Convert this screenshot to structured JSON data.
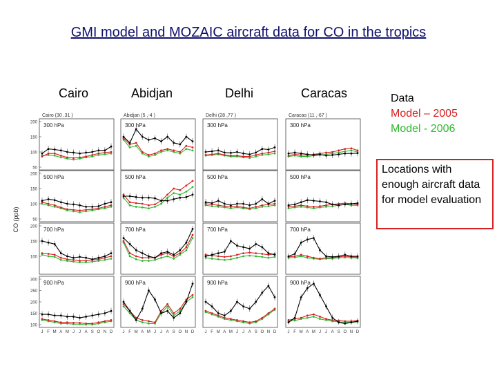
{
  "slide": {
    "title": "GMI model and MOZAIC aircraft data for CO in the tropics",
    "cities": [
      "Cairo",
      "Abidjan",
      "Delhi",
      "Caracas"
    ],
    "legend": [
      {
        "label": "Data",
        "color": "#000000"
      },
      {
        "label": "Model – 2005",
        "color": "#d62020"
      },
      {
        "label": "Model - 2006",
        "color": "#2eb82e"
      }
    ],
    "note": "Locations with enough aircraft data for model evaluation"
  },
  "chart_data": {
    "type": "line",
    "ylabel": "CO (ppb)",
    "months": [
      "J",
      "F",
      "M",
      "A",
      "M",
      "J",
      "J",
      "A",
      "S",
      "O",
      "N",
      "D"
    ],
    "columns": [
      "Cairo (30 ,31 )",
      "Abidjan (5 ,-4 )",
      "Delhi (28 ,77 )",
      "Caracas (11 ,-67 )"
    ],
    "series_names": [
      "Data",
      "Model – 2005",
      "Model - 2006"
    ],
    "series_colors": [
      "#000000",
      "#d62020",
      "#2eb82e"
    ],
    "rows": [
      {
        "level": "300 hPa",
        "ylim": [
          50,
          200
        ],
        "yticks": [
          50,
          100,
          150,
          200
        ],
        "panels": [
          {
            "data": [
              95,
              110,
              108,
              105,
              100,
              98,
              95,
              98,
              100,
              105,
              105,
              118
            ],
            "m2005": [
              85,
              95,
              95,
              88,
              82,
              80,
              82,
              85,
              90,
              95,
              98,
              100
            ],
            "m2006": [
              88,
              90,
              88,
              82,
              78,
              75,
              78,
              82,
              85,
              90,
              92,
              95
            ]
          },
          {
            "data": [
              150,
              130,
              175,
              150,
              140,
              145,
              135,
              150,
              130,
              125,
              150,
              135
            ],
            "m2005": [
              145,
              125,
              130,
              100,
              90,
              95,
              105,
              110,
              105,
              100,
              120,
              115
            ],
            "m2006": [
              140,
              115,
              120,
              95,
              85,
              90,
              100,
              105,
              100,
              95,
              110,
              105
            ]
          },
          {
            "data": [
              100,
              102,
              105,
              98,
              97,
              100,
              95,
              92,
              98,
              110,
              108,
              115
            ],
            "m2005": [
              90,
              92,
              95,
              90,
              88,
              88,
              85,
              85,
              90,
              95,
              98,
              102
            ],
            "m2006": [
              88,
              90,
              92,
              88,
              85,
              85,
              82,
              80,
              85,
              90,
              92,
              95
            ]
          },
          {
            "data": [
              95,
              98,
              95,
              92,
              90,
              92,
              88,
              90,
              92,
              95,
              95,
              96
            ],
            "m2005": [
              88,
              92,
              90,
              90,
              92,
              95,
              98,
              100,
              105,
              110,
              112,
              105
            ],
            "m2006": [
              85,
              88,
              85,
              85,
              88,
              90,
              92,
              95,
              98,
              102,
              105,
              100
            ]
          }
        ]
      },
      {
        "level": "500 hPa",
        "ylim": [
          50,
          200
        ],
        "yticks": [
          50,
          100,
          150,
          200
        ],
        "panels": [
          {
            "data": [
              110,
              115,
              112,
              105,
              100,
              98,
              95,
              90,
              90,
              92,
              100,
              105
            ],
            "m2005": [
              105,
              100,
              95,
              88,
              82,
              80,
              78,
              80,
              82,
              85,
              90,
              95
            ],
            "m2006": [
              100,
              95,
              90,
              85,
              78,
              75,
              72,
              75,
              78,
              82,
              85,
              90
            ]
          },
          {
            "data": [
              125,
              125,
              122,
              120,
              120,
              118,
              110,
              110,
              115,
              120,
              122,
              130
            ],
            "m2005": [
              130,
              105,
              102,
              100,
              95,
              98,
              110,
              130,
              150,
              145,
              160,
              175
            ],
            "m2006": [
              120,
              95,
              90,
              88,
              85,
              90,
              100,
              120,
              135,
              130,
              140,
              155
            ]
          },
          {
            "data": [
              105,
              102,
              110,
              100,
              95,
              100,
              100,
              95,
              100,
              115,
              100,
              110
            ],
            "m2005": [
              100,
              98,
              95,
              92,
              90,
              92,
              88,
              85,
              90,
              95,
              98,
              100
            ],
            "m2006": [
              95,
              92,
              90,
              88,
              85,
              88,
              85,
              82,
              85,
              90,
              92,
              95
            ]
          },
          {
            "data": [
              95,
              98,
              105,
              112,
              110,
              108,
              105,
              98,
              95,
              98,
              100,
              102
            ],
            "m2005": [
              90,
              92,
              95,
              92,
              90,
              92,
              95,
              98,
              100,
              102,
              100,
              98
            ],
            "m2006": [
              85,
              88,
              90,
              88,
              85,
              88,
              90,
              92,
              95,
              98,
              95,
              95
            ]
          }
        ]
      },
      {
        "level": "700 hPa",
        "ylim": [
          50,
          200
        ],
        "yticks": [
          100,
          150,
          200
        ],
        "panels": [
          {
            "data": [
              150,
              145,
              140,
              110,
              100,
              95,
              98,
              95,
              90,
              95,
              100,
              110
            ],
            "m2005": [
              110,
              108,
              105,
              95,
              90,
              88,
              85,
              85,
              88,
              90,
              95,
              100
            ],
            "m2006": [
              105,
              100,
              98,
              88,
              85,
              82,
              80,
              80,
              82,
              85,
              88,
              92
            ]
          },
          {
            "data": [
              160,
              140,
              120,
              110,
              100,
              95,
              110,
              115,
              105,
              120,
              145,
              190
            ],
            "m2005": [
              150,
              110,
              100,
              95,
              95,
              95,
              105,
              110,
              100,
              110,
              130,
              170
            ],
            "m2006": [
              145,
              100,
              90,
              85,
              85,
              88,
              95,
              100,
              92,
              105,
              120,
              160
            ]
          },
          {
            "data": [
              100,
              105,
              110,
              115,
              150,
              135,
              130,
              125,
              140,
              130,
              110,
              105
            ],
            "m2005": [
              105,
              102,
              100,
              98,
              100,
              105,
              110,
              112,
              110,
              108,
              105,
              108
            ],
            "m2006": [
              95,
              92,
              90,
              88,
              90,
              95,
              100,
              102,
              100,
              98,
              95,
              98
            ]
          },
          {
            "data": [
              100,
              108,
              145,
              155,
              160,
              120,
              100,
              98,
              100,
              105,
              100,
              100
            ],
            "m2005": [
              98,
              100,
              105,
              100,
              95,
              92,
              95,
              96,
              98,
              100,
              98,
              97
            ],
            "m2006": [
              95,
              96,
              100,
              95,
              92,
              90,
              92,
              92,
              95,
              96,
              95,
              94
            ]
          }
        ]
      },
      {
        "level": "900 hPa",
        "ylim": [
          100,
          300
        ],
        "yticks": [
          100,
          150,
          200,
          250,
          300
        ],
        "panels": [
          {
            "data": [
              145,
              145,
              140,
              140,
              135,
              135,
              130,
              135,
              140,
              145,
              150,
              160
            ],
            "m2005": [
              125,
              120,
              115,
              110,
              110,
              108,
              108,
              105,
              105,
              110,
              115,
              120
            ],
            "m2006": [
              120,
              115,
              110,
              105,
              105,
              102,
              102,
              100,
              100,
              105,
              110,
              115
            ]
          },
          {
            "data": [
              200,
              160,
              120,
              170,
              250,
              210,
              150,
              160,
              130,
              150,
              200,
              280
            ],
            "m2005": [
              190,
              160,
              130,
              120,
              115,
              110,
              160,
              190,
              150,
              170,
              210,
              230
            ],
            "m2006": [
              180,
              150,
              120,
              110,
              105,
              105,
              150,
              180,
              140,
              160,
              200,
              220
            ]
          },
          {
            "data": [
              200,
              180,
              150,
              140,
              160,
              200,
              180,
              170,
              200,
              240,
              270,
              220
            ],
            "m2005": [
              160,
              150,
              140,
              130,
              125,
              120,
              115,
              110,
              115,
              130,
              150,
              170
            ],
            "m2006": [
              155,
              145,
              135,
              125,
              120,
              115,
              110,
              105,
              110,
              125,
              145,
              165
            ]
          },
          {
            "data": [
              110,
              130,
              220,
              260,
              280,
              230,
              180,
              130,
              110,
              105,
              110,
              115
            ],
            "m2005": [
              120,
              125,
              130,
              140,
              145,
              135,
              125,
              120,
              118,
              115,
              115,
              118
            ],
            "m2006": [
              115,
              118,
              125,
              130,
              135,
              125,
              120,
              115,
              112,
              110,
              110,
              112
            ]
          }
        ]
      }
    ]
  }
}
